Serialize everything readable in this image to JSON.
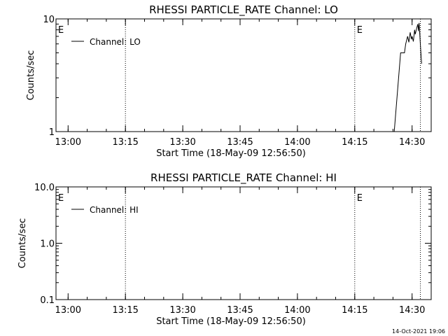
{
  "timestamp": "14-Oct-2021 19:06",
  "chart_data": [
    {
      "type": "line",
      "title": "RHESSI PARTICLE_RATE Channel: LO",
      "xlabel": "Start Time (18-May-09 12:56:50)",
      "ylabel": "Counts/sec",
      "y_scale": "log",
      "ylim": [
        1,
        10
      ],
      "y_ticks": [
        1,
        10
      ],
      "y_tick_labels": [
        "1",
        "10"
      ],
      "xlim": [
        "12:56:50",
        "14:35:00"
      ],
      "x_ticks": [
        "13:00",
        "13:15",
        "13:30",
        "13:45",
        "14:00",
        "14:15",
        "14:30"
      ],
      "legend": {
        "label": "Channel: LO",
        "position": "top-left"
      },
      "event_markers": [
        {
          "label": "E",
          "time": "12:56:50",
          "line": false
        },
        {
          "label": "",
          "time": "13:15:00",
          "line": true
        },
        {
          "label": "E",
          "time": "14:15:00",
          "line": true
        },
        {
          "label": "",
          "time": "14:32:10",
          "line": true
        }
      ],
      "series": [
        {
          "name": "Channel: LO",
          "x": [
            "14:25:20",
            "14:27:00",
            "14:27:10",
            "14:28:00",
            "14:28:20",
            "14:28:50",
            "14:29:10",
            "14:29:30",
            "14:29:50",
            "14:30:00",
            "14:30:20",
            "14:30:40",
            "14:30:50",
            "14:31:10",
            "14:31:30",
            "14:31:40",
            "14:31:50",
            "14:32:10",
            "14:32:30"
          ],
          "y": [
            1.0,
            5.0,
            5.0,
            5.0,
            6.0,
            7.0,
            6.2,
            7.6,
            6.6,
            7.0,
            6.3,
            8.0,
            7.3,
            8.2,
            9.0,
            7.8,
            9.2,
            6.0,
            4.0
          ]
        }
      ]
    },
    {
      "type": "line",
      "title": "RHESSI PARTICLE_RATE Channel: HI",
      "xlabel": "Start Time (18-May-09 12:56:50)",
      "ylabel": "Counts/sec",
      "y_scale": "log",
      "ylim": [
        0.1,
        10
      ],
      "y_ticks": [
        0.1,
        1,
        10
      ],
      "y_tick_labels": [
        "0.1",
        "1.0",
        "10.0"
      ],
      "xlim": [
        "12:56:50",
        "14:35:00"
      ],
      "x_ticks": [
        "13:00",
        "13:15",
        "13:30",
        "13:45",
        "14:00",
        "14:15",
        "14:30"
      ],
      "legend": {
        "label": "Channel: HI",
        "position": "top-left"
      },
      "event_markers": [
        {
          "label": "E",
          "time": "12:56:50",
          "line": false
        },
        {
          "label": "",
          "time": "13:15:00",
          "line": true
        },
        {
          "label": "E",
          "time": "14:15:00",
          "line": true
        },
        {
          "label": "",
          "time": "14:32:10",
          "line": true
        }
      ],
      "series": [
        {
          "name": "Channel: HI",
          "x": [],
          "y": []
        }
      ]
    }
  ]
}
